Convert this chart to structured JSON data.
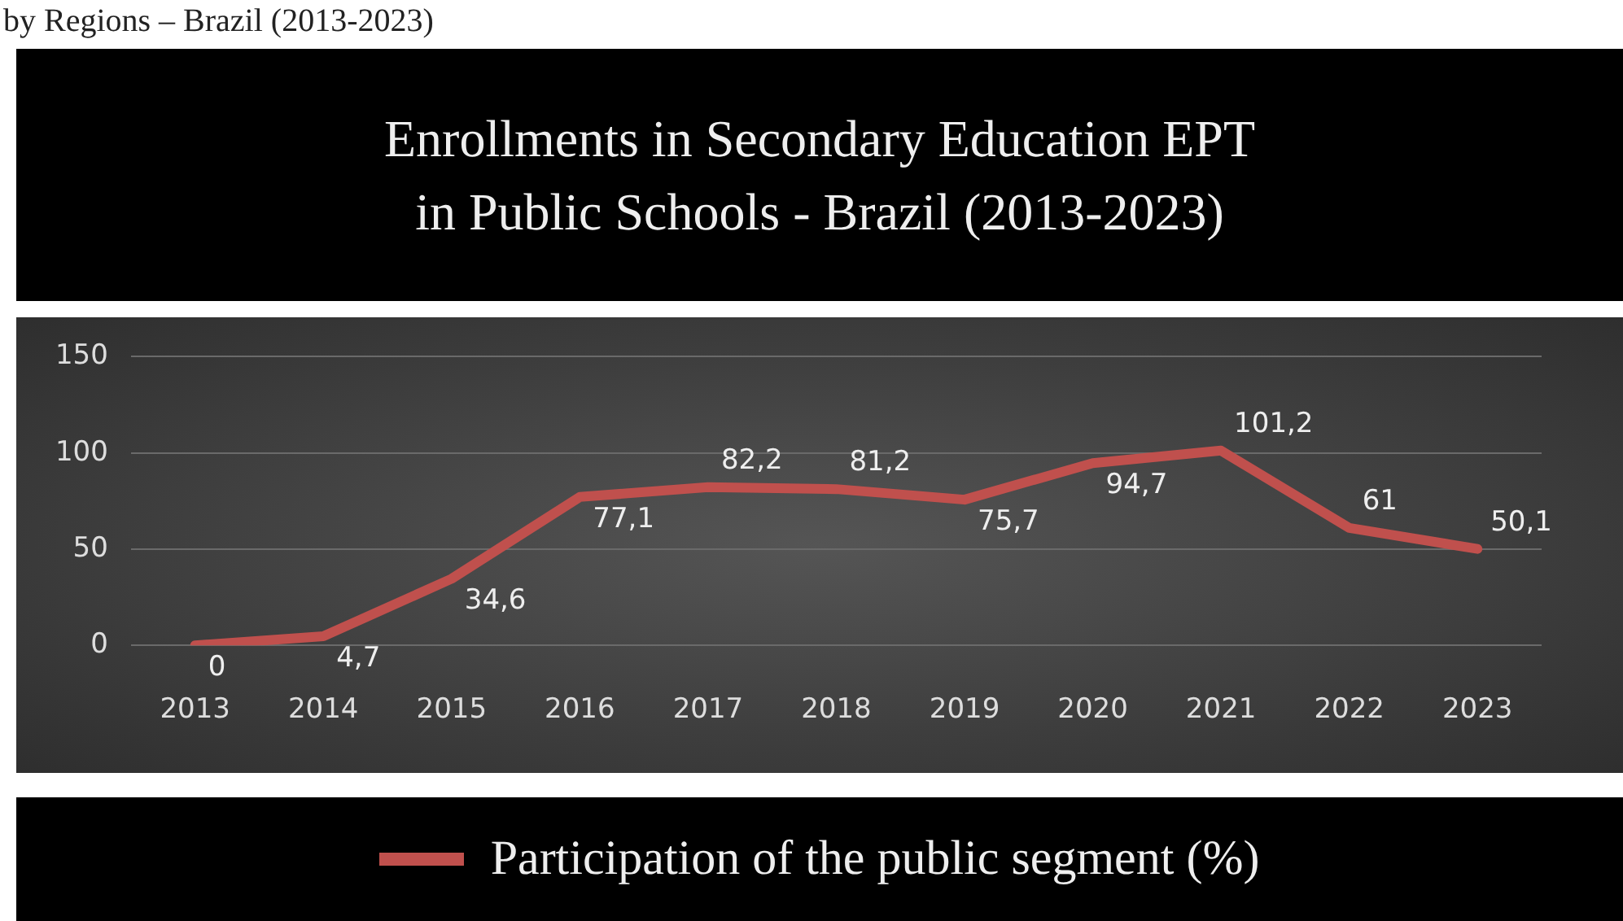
{
  "chart_data": {
    "type": "line",
    "title": "Enrollments in Secondary Education EPT\nin Public Schools - Brazil (2013-2023)",
    "annotations": [
      "by Regions – Brazil (2013-2023)"
    ],
    "categories": [
      "2013",
      "2014",
      "2015",
      "2016",
      "2017",
      "2018",
      "2019",
      "2020",
      "2021",
      "2022",
      "2023"
    ],
    "series": [
      {
        "name": "Participation of the public segment (%)",
        "color": "#c0504d",
        "values": [
          0,
          4.7,
          34.6,
          77.1,
          82.2,
          81.2,
          75.7,
          94.7,
          101.2,
          61,
          50.1
        ],
        "value_labels": [
          "0",
          "4,7",
          "34,6",
          "77,1",
          "82,2",
          "81,2",
          "75,7",
          "94,7",
          "101,2",
          "61",
          "50,1"
        ]
      }
    ],
    "ylim": [
      0,
      150
    ],
    "yticks": [
      0,
      50,
      100,
      150
    ],
    "grid": "y",
    "legend": "bottom",
    "marker": "none",
    "line_style": "solid"
  }
}
